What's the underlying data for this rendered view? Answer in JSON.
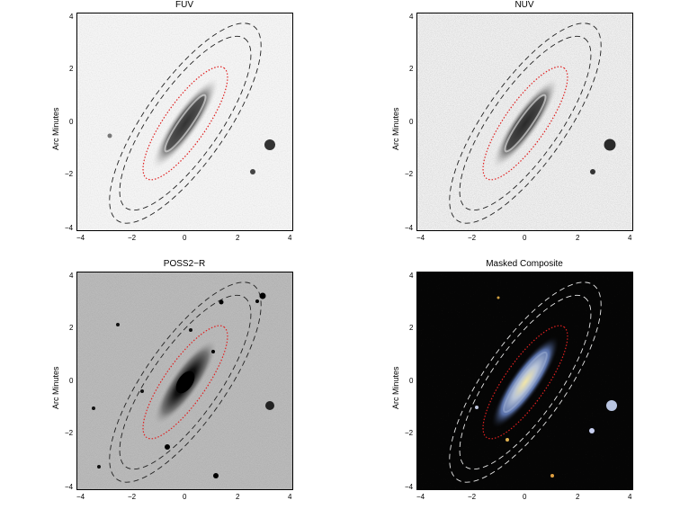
{
  "panels": [
    {
      "title": "FUV",
      "ylabel": "Arc Minutes",
      "xticks": [
        "−4",
        "−2",
        "0",
        "2",
        "4"
      ],
      "yticks": [
        "4",
        "2",
        "0",
        "−2",
        "−4"
      ]
    },
    {
      "title": "NUV",
      "ylabel": "Arc Minutes",
      "xticks": [
        "−4",
        "−2",
        "0",
        "2",
        "4"
      ],
      "yticks": [
        "4",
        "2",
        "0",
        "−2",
        "−4"
      ]
    },
    {
      "title": "POSS2−R",
      "ylabel": "Arc Minutes",
      "xticks": [
        "−4",
        "−2",
        "0",
        "2",
        "4"
      ],
      "yticks": [
        "4",
        "2",
        "0",
        "−2",
        "−4"
      ]
    },
    {
      "title": "Masked Composite",
      "ylabel": "Arc Minutes",
      "xticks": [
        "−4",
        "−2",
        "0",
        "2",
        "4"
      ],
      "yticks": [
        "4",
        "2",
        "0",
        "−2",
        "−4"
      ]
    }
  ],
  "colors": {
    "inner_ellipse": "#e02020",
    "outer_ellipse_dark": "#222222",
    "outer_ellipse_light": "#e8e8e8"
  }
}
